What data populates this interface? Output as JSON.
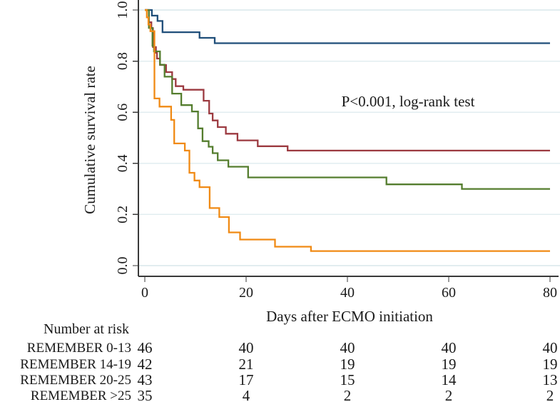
{
  "chart_data": {
    "type": "line",
    "subtype": "kaplan-meier-step",
    "xlabel": "Days after ECMO initiation",
    "ylabel": "Cumulative survival rate",
    "annotation": "P<0.001, log-rank test",
    "xlim": [
      0,
      80
    ],
    "ylim": [
      0.0,
      1.0
    ],
    "x_ticks": [
      "0",
      "20",
      "40",
      "60",
      "80"
    ],
    "y_ticks": [
      "0.0",
      "0.2",
      "0.4",
      "0.6",
      "0.8",
      "1.0"
    ],
    "grid": "horizontal",
    "legend_position": "none",
    "series": [
      {
        "name": "REMEMBER 0-13",
        "color": "#1f4e79",
        "steps": [
          [
            0,
            1.0
          ],
          [
            1.4,
            0.978
          ],
          [
            2.5,
            0.957
          ],
          [
            3.5,
            0.913
          ],
          [
            10.8,
            0.891
          ],
          [
            13.8,
            0.87
          ],
          [
            80,
            0.87
          ]
        ]
      },
      {
        "name": "REMEMBER 14-19",
        "color": "#9c3a40",
        "steps": [
          [
            0,
            1.0
          ],
          [
            0.8,
            0.952
          ],
          [
            1.3,
            0.929
          ],
          [
            1.6,
            0.855
          ],
          [
            2.2,
            0.833
          ],
          [
            2.4,
            0.81
          ],
          [
            3.0,
            0.785
          ],
          [
            4.2,
            0.757
          ],
          [
            5.4,
            0.73
          ],
          [
            6.1,
            0.702
          ],
          [
            7.6,
            0.688
          ],
          [
            11.6,
            0.645
          ],
          [
            12.7,
            0.595
          ],
          [
            13.4,
            0.568
          ],
          [
            14.4,
            0.542
          ],
          [
            16.0,
            0.516
          ],
          [
            18.3,
            0.49
          ],
          [
            22.3,
            0.467
          ],
          [
            28.2,
            0.45
          ],
          [
            80,
            0.45
          ]
        ]
      },
      {
        "name": "REMEMBER 20-25",
        "color": "#547d2e",
        "steps": [
          [
            0,
            1.0
          ],
          [
            0.8,
            0.93
          ],
          [
            1.5,
            0.86
          ],
          [
            1.8,
            0.838
          ],
          [
            3.0,
            0.786
          ],
          [
            3.9,
            0.739
          ],
          [
            5.4,
            0.673
          ],
          [
            7.2,
            0.628
          ],
          [
            9.3,
            0.603
          ],
          [
            10.5,
            0.537
          ],
          [
            11.4,
            0.487
          ],
          [
            12.6,
            0.465
          ],
          [
            13.4,
            0.44
          ],
          [
            14.4,
            0.412
          ],
          [
            16.5,
            0.387
          ],
          [
            20.4,
            0.345
          ],
          [
            47.7,
            0.318
          ],
          [
            62.6,
            0.3
          ],
          [
            80,
            0.3
          ]
        ]
      },
      {
        "name": "REMEMBER >25",
        "color": "#f08a14",
        "steps": [
          [
            0,
            1.0
          ],
          [
            0.4,
            0.971
          ],
          [
            0.7,
            0.943
          ],
          [
            1.1,
            0.917
          ],
          [
            1.9,
            0.654
          ],
          [
            2.9,
            0.622
          ],
          [
            5.2,
            0.57
          ],
          [
            5.8,
            0.478
          ],
          [
            7.9,
            0.45
          ],
          [
            8.8,
            0.363
          ],
          [
            9.8,
            0.333
          ],
          [
            10.8,
            0.307
          ],
          [
            12.8,
            0.225
          ],
          [
            14.7,
            0.19
          ],
          [
            16.6,
            0.13
          ],
          [
            18.8,
            0.102
          ],
          [
            25.7,
            0.074
          ],
          [
            32.8,
            0.057
          ],
          [
            80,
            0.057
          ]
        ]
      }
    ]
  },
  "risk_table": {
    "header": "Number at risk",
    "time_points": [
      0,
      20,
      40,
      60,
      80
    ],
    "rows": [
      {
        "label": "REMEMBER 0-13",
        "color": "#2a6096",
        "values": [
          "46",
          "40",
          "40",
          "40",
          "40"
        ]
      },
      {
        "label": "REMEMBER 14-19",
        "color": "#a03e46",
        "values": [
          "42",
          "21",
          "19",
          "19",
          "19"
        ]
      },
      {
        "label": "REMEMBER 20-25",
        "color": "#5a8133",
        "values": [
          "43",
          "17",
          "15",
          "14",
          "13"
        ]
      },
      {
        "label": "REMEMBER >25",
        "color": "#f08a14",
        "values": [
          "35",
          "4",
          "2",
          "2",
          "2"
        ]
      }
    ]
  },
  "colors": {
    "grid": "#e2edf0",
    "axis": "#3a3a3a",
    "text": "#1a1a1a"
  }
}
